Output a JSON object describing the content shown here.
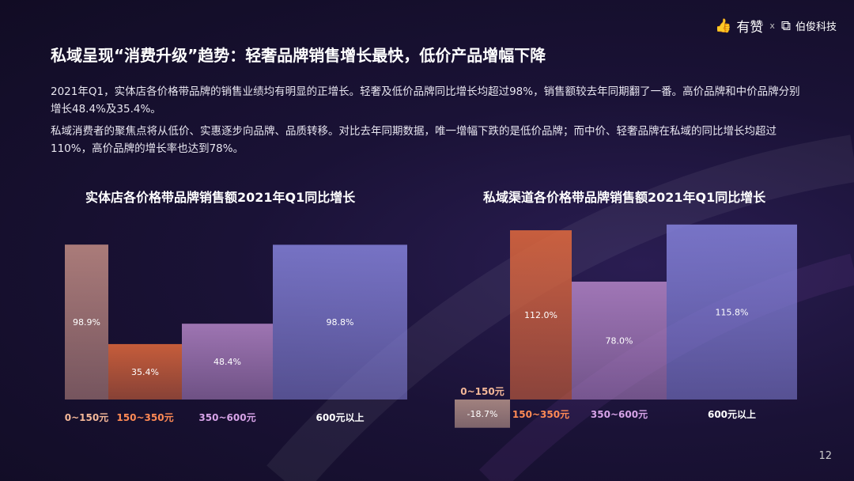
{
  "brand": {
    "name1": "有赞",
    "sep": "x",
    "name2": "伯俊科技"
  },
  "title": "私域呈现“消费升级”趋势：轻奢品牌销售增长最快，低价产品增幅下降",
  "paragraphs": [
    "2021年Q1，实体店各价格带品牌的销售业绩均有明显的正增长。轻奢及低价品牌同比增长均超过98%，销售额较去年同期翻了一番。高价品牌和中价品牌分别增长48.4%及35.4%。",
    "私域消费者的聚焦点将从低价、实惠逐步向品牌、品质转移。对比去年同期数据，唯一增幅下跌的是低价品牌；而中价、轻奢品牌在私域的同比增长均超过110%，高价品牌的增长率也达到78%。"
  ],
  "page_number": "12",
  "chart_data": [
    {
      "type": "bar",
      "title": "实体店各价格带品牌销售额2021年Q1同比增长",
      "categories": [
        "0~150元",
        "150~350元",
        "350~600元",
        "600元以上"
      ],
      "values": [
        98.9,
        35.4,
        48.4,
        98.8
      ],
      "labels": [
        "98.9%",
        "35.4%",
        "48.4%",
        "98.8%"
      ],
      "colors": [
        "#c48e86",
        "#e46a3c",
        "#b586c8",
        "#8683dc"
      ]
    },
    {
      "type": "bar",
      "title": "私域渠道各价格带品牌销售额2021年Q1同比增长",
      "categories": [
        "0~150元",
        "150~350元",
        "350~600元",
        "600元以上"
      ],
      "values": [
        -18.7,
        112.0,
        78.0,
        115.8
      ],
      "labels": [
        "-18.7%",
        "112.0%",
        "78.0%",
        "115.8%"
      ],
      "colors": [
        "#a88782",
        "#e46a3c",
        "#b586c8",
        "#8683dc"
      ]
    }
  ]
}
